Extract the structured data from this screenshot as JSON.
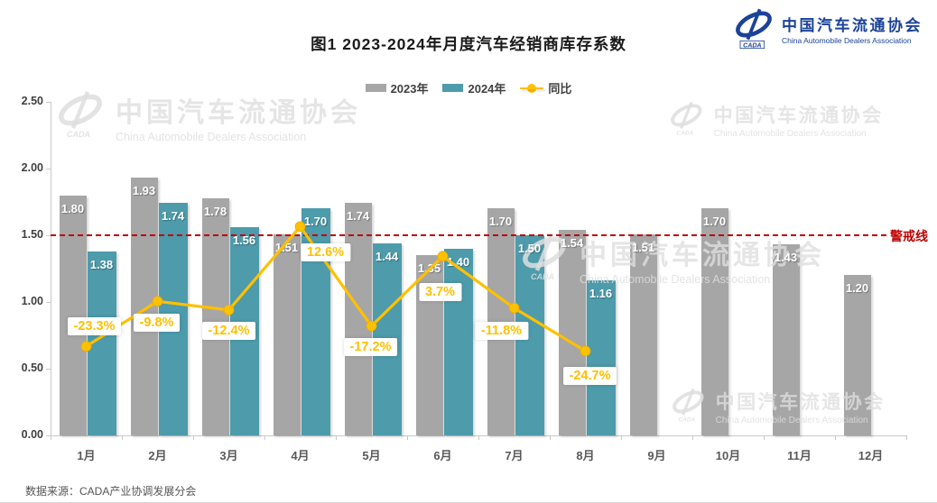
{
  "header": {
    "title": "图1  2023-2024年月度汽车经销商库存系数",
    "logo": {
      "org_cn": "中国汽车流通协会",
      "org_en": "China Automobile Dealers Association",
      "badge": "CADA"
    }
  },
  "legend": [
    {
      "label": "2023年",
      "color": "#a6a6a6",
      "type": "swatch"
    },
    {
      "label": "2024年",
      "color": "#4d9bab",
      "type": "swatch"
    },
    {
      "label": "同比",
      "color": "#ffc000",
      "type": "line"
    }
  ],
  "chart_data": {
    "type": "bar",
    "title": "图1  2023-2024年月度汽车经销商库存系数",
    "categories": [
      "1月",
      "2月",
      "3月",
      "4月",
      "5月",
      "6月",
      "7月",
      "8月",
      "9月",
      "10月",
      "11月",
      "12月"
    ],
    "series": [
      {
        "name": "2023年",
        "type": "bar",
        "color": "#a6a6a6",
        "values": [
          1.8,
          1.93,
          1.78,
          1.51,
          1.74,
          1.35,
          1.7,
          1.54,
          1.51,
          1.7,
          1.43,
          1.2
        ]
      },
      {
        "name": "2024年",
        "type": "bar",
        "color": "#4d9bab",
        "values": [
          1.38,
          1.74,
          1.56,
          1.7,
          1.44,
          1.4,
          1.5,
          1.16
        ]
      },
      {
        "name": "同比",
        "type": "line",
        "color": "#ffc000",
        "unit": "%",
        "values": [
          -23.3,
          -9.8,
          -12.4,
          12.6,
          -17.2,
          3.7,
          -11.8,
          -24.7
        ]
      }
    ],
    "y_axis": {
      "ticks": [
        "0.00",
        "0.50",
        "1.00",
        "1.50",
        "2.00",
        "2.50"
      ],
      "min": 0,
      "max": 2.5
    },
    "secondary_axis": {
      "min": -50,
      "max": 50,
      "visible": false
    },
    "warning_line": {
      "value": 1.5,
      "label": "警戒线",
      "color": "#bf0000"
    },
    "legend_position": "top",
    "grid": false
  },
  "watermark": {
    "cn": "中国汽车流通协会",
    "en": "China Automobile Dealers Association",
    "badge": "CADA"
  },
  "footer": {
    "source": "数据来源：CADA产业协调发展分会"
  },
  "colors": {
    "bar_2023": "#a6a6a6",
    "bar_2024": "#4d9bab",
    "line_sync": "#ffc000",
    "warning": "#bf0000",
    "logo_blue": "#1b4298"
  }
}
